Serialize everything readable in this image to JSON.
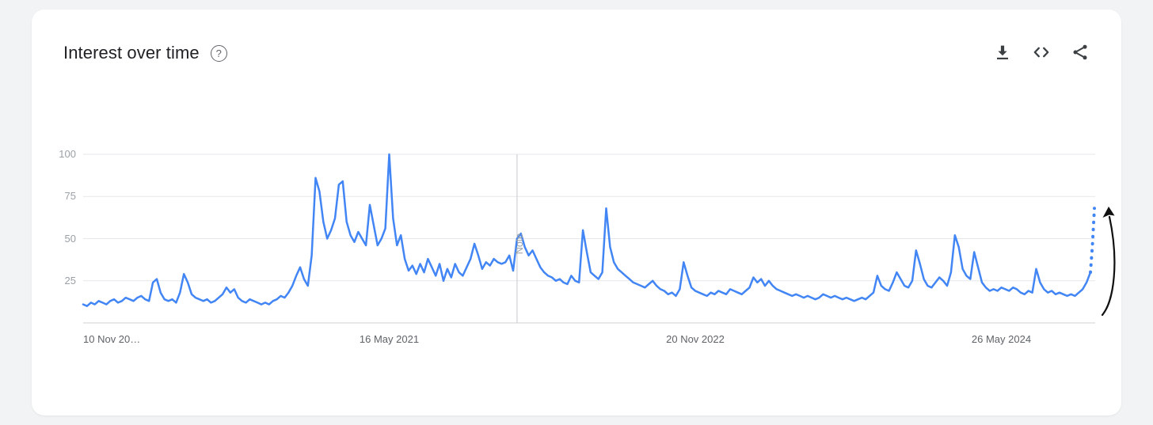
{
  "window": {
    "background": "#f1f3f4",
    "card_background": "#ffffff"
  },
  "header": {
    "title": "Interest over time",
    "help_icon": "?"
  },
  "actions": {
    "icons": [
      "download-icon",
      "embed-icon",
      "share-icon"
    ]
  },
  "chart_data": {
    "type": "line",
    "title": "Interest over time",
    "x_axis": {
      "unit": "weeks",
      "ticks": [
        {
          "label": "10 Nov 20…",
          "week": 0,
          "anchor": "start"
        },
        {
          "label": "16 May 2021",
          "week": 79,
          "anchor": "middle"
        },
        {
          "label": "20 Nov 2022",
          "week": 158,
          "anchor": "middle"
        },
        {
          "label": "26 May 2024",
          "week": 237,
          "anchor": "middle"
        }
      ]
    },
    "y_axis": {
      "range": [
        0,
        100
      ],
      "ticks": [
        {
          "label": "100",
          "value": 100
        },
        {
          "label": "75",
          "value": 75
        },
        {
          "label": "50",
          "value": 50
        },
        {
          "label": "25",
          "value": 25
        }
      ]
    },
    "note": {
      "label": "Note",
      "week": 112
    },
    "colors": {
      "line": "#4285f4",
      "grid": "#e6e7ea",
      "axis": "#ccd0d4",
      "note_line": "#c6c9cd",
      "y_tick_text": "#9aa0a6",
      "x_tick_text": "#5f6368",
      "annotation": "#111111"
    },
    "solid_values": [
      11,
      10,
      12,
      11,
      13,
      12,
      11,
      13,
      14,
      12,
      13,
      15,
      14,
      13,
      15,
      16,
      14,
      13,
      24,
      26,
      18,
      14,
      13,
      14,
      12,
      18,
      29,
      24,
      17,
      15,
      14,
      13,
      14,
      12,
      13,
      15,
      17,
      21,
      18,
      20,
      15,
      13,
      12,
      14,
      13,
      12,
      11,
      12,
      11,
      13,
      14,
      16,
      15,
      18,
      22,
      28,
      33,
      26,
      22,
      40,
      86,
      78,
      60,
      50,
      55,
      62,
      82,
      84,
      60,
      52,
      48,
      54,
      50,
      46,
      70,
      58,
      46,
      50,
      56,
      100,
      62,
      46,
      52,
      38,
      31,
      34,
      29,
      35,
      30,
      38,
      33,
      28,
      35,
      25,
      32,
      27,
      35,
      30,
      28,
      33,
      38,
      47,
      40,
      32,
      36,
      34,
      38,
      36,
      35,
      36,
      40,
      31,
      50,
      53,
      45,
      40,
      43,
      38,
      33,
      30,
      28,
      27,
      25,
      26,
      24,
      23,
      28,
      25,
      24,
      55,
      42,
      30,
      28,
      26,
      30,
      68,
      45,
      36,
      32,
      30,
      28,
      26,
      24,
      23,
      22,
      21,
      23,
      25,
      22,
      20,
      19,
      17,
      18,
      16,
      20,
      36,
      28,
      21,
      19,
      18,
      17,
      16,
      18,
      17,
      19,
      18,
      17,
      20,
      19,
      18,
      17,
      19,
      21,
      27,
      24,
      26,
      22,
      25,
      22,
      20,
      19,
      18,
      17,
      16,
      17,
      16,
      15,
      16,
      15,
      14,
      15,
      17,
      16,
      15,
      16,
      15,
      14,
      15,
      14,
      13,
      14,
      15,
      14,
      16,
      18,
      28,
      22,
      20,
      19,
      24,
      30,
      26,
      22,
      21,
      25,
      43,
      35,
      26,
      22,
      21,
      24,
      27,
      25,
      22,
      30,
      52,
      45,
      32,
      28,
      26,
      42,
      33,
      24,
      21,
      19,
      20,
      19,
      21,
      20,
      19,
      21,
      20,
      18,
      17,
      19,
      18,
      32,
      24,
      20,
      18,
      19,
      17,
      18,
      17,
      16,
      17,
      16,
      18,
      20,
      24,
      30
    ],
    "dashed_values": [
      46,
      68
    ],
    "annotation": {
      "type": "arrow-up",
      "description": "black curved arrow pointing upward at right edge of chart"
    }
  }
}
